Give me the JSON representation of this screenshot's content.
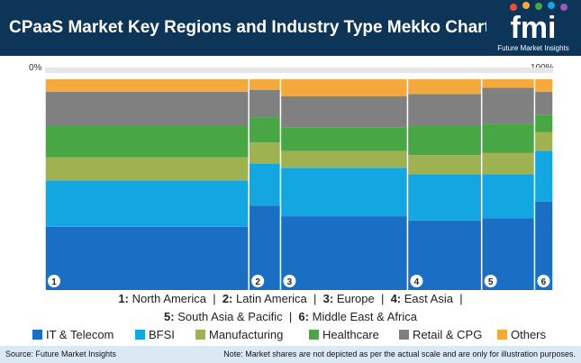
{
  "header": {
    "title": "CPaaS Market Key Regions and Industry Type Mekko Chart, 2021",
    "logo_text": "fmi",
    "logo_subtext": "Future Market Insights"
  },
  "colors": {
    "header_bg": "#0c3558",
    "footer_bg": "#dbe9f5",
    "series": [
      "#1a6fc4",
      "#14a6e0",
      "#9fb251",
      "#49a645",
      "#808080",
      "#f4a93d"
    ]
  },
  "chart_data": {
    "type": "mekko",
    "axis_labels": {
      "left": "0%",
      "right": "100%"
    },
    "region_labels": [
      {
        "num": "1",
        "name": "North America"
      },
      {
        "num": "2",
        "name": "Latin America"
      },
      {
        "num": "3",
        "name": "Europe"
      },
      {
        "num": "4",
        "name": "East Asia"
      },
      {
        "num": "5",
        "name": "South Asia & Pacific"
      },
      {
        "num": "6",
        "name": "Middle East & Africa"
      }
    ],
    "column_widths": [
      38.5,
      6,
      24,
      14,
      10,
      3.5
    ],
    "series": [
      {
        "name": "IT & Telecom",
        "values": [
          30,
          40,
          35,
          33,
          34,
          42
        ]
      },
      {
        "name": "BFSI",
        "values": [
          22,
          20,
          23,
          22,
          21,
          24
        ]
      },
      {
        "name": "Manufacturing",
        "values": [
          11,
          10,
          8,
          9,
          10,
          9
        ]
      },
      {
        "name": "Healthcare",
        "values": [
          15,
          12,
          11,
          14,
          14,
          8
        ]
      },
      {
        "name": "Retail & CPG",
        "values": [
          16,
          13,
          15,
          15,
          17,
          11
        ]
      },
      {
        "name": "Others",
        "values": [
          6,
          5,
          8,
          7,
          4,
          6
        ]
      }
    ]
  },
  "footer": {
    "source": "Source: Future Market Insights",
    "note": "Note: Market shares are not depicted as per the actual scale and are only for illustration purposes."
  }
}
